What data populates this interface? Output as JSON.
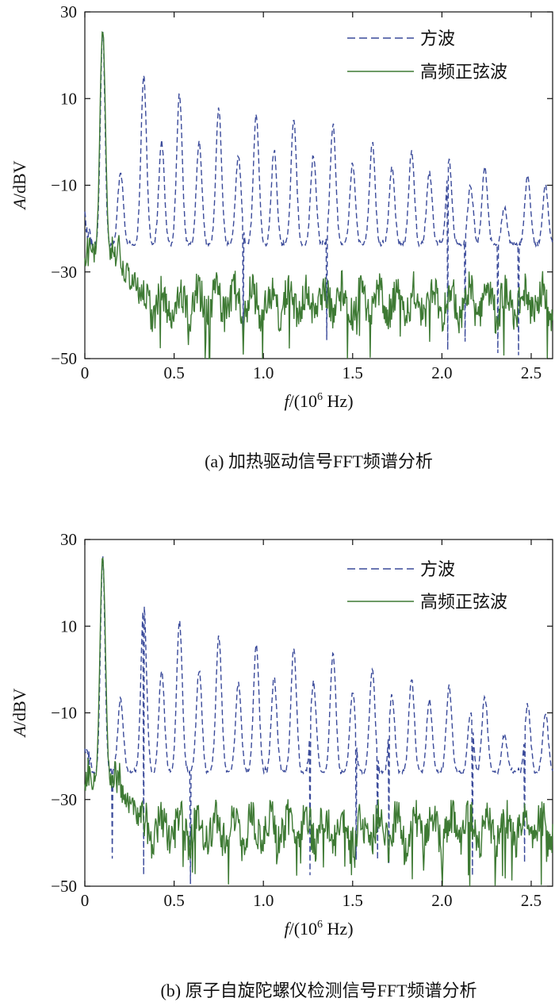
{
  "chart_data": [
    {
      "type": "line",
      "caption": "(a) 加热驱动信号FFT频谱分析",
      "xlabel_var": "f",
      "xlabel_unit_open": "/(10",
      "xlabel_exp": "6",
      "xlabel_unit_close": " Hz)",
      "ylabel_var": "A",
      "ylabel_unit": "/dBV",
      "xlim": [
        0,
        2.62
      ],
      "ylim": [
        -50,
        30
      ],
      "xticks": [
        0,
        0.5,
        1.0,
        1.5,
        2.0,
        2.5
      ],
      "xtick_labels": [
        "0",
        "0.5",
        "1.0",
        "1.5",
        "2.0",
        "2.5"
      ],
      "yticks": [
        30,
        10,
        -10,
        -30,
        -50
      ],
      "ytick_labels": [
        "30",
        "10",
        "−10",
        "−30",
        "−50"
      ],
      "legend_position": "top-right",
      "series": [
        {
          "name": "方波",
          "style": "dashed",
          "color": "#3a4a9a",
          "harmonics": [
            [
              0.1,
              26
            ],
            [
              0.2,
              -7
            ],
            [
              0.33,
              15
            ],
            [
              0.43,
              0
            ],
            [
              0.53,
              11
            ],
            [
              0.64,
              0
            ],
            [
              0.75,
              8
            ],
            [
              0.86,
              -3
            ],
            [
              0.96,
              6
            ],
            [
              1.06,
              -2
            ],
            [
              1.17,
              5
            ],
            [
              1.28,
              -3
            ],
            [
              1.39,
              4
            ],
            [
              1.5,
              -5
            ],
            [
              1.61,
              0
            ],
            [
              1.72,
              -6
            ],
            [
              1.83,
              -2
            ],
            [
              1.93,
              -7
            ],
            [
              2.04,
              -4
            ],
            [
              2.16,
              -10
            ],
            [
              2.24,
              -6
            ],
            [
              2.35,
              -15
            ],
            [
              2.48,
              -8
            ],
            [
              2.58,
              -10
            ]
          ],
          "floor": -24
        },
        {
          "name": "高频正弦波",
          "style": "solid",
          "color": "#3e7a34",
          "peak": [
            0.1,
            26
          ],
          "floor": -37
        }
      ]
    },
    {
      "type": "line",
      "caption": "(b) 原子自旋陀螺仪检测信号FFT频谱分析",
      "xlabel_var": "f",
      "xlabel_unit_open": "/(10",
      "xlabel_exp": "6",
      "xlabel_unit_close": " Hz)",
      "ylabel_var": "A",
      "ylabel_unit": "/dBV",
      "xlim": [
        0,
        2.62
      ],
      "ylim": [
        -50,
        30
      ],
      "xticks": [
        0,
        0.5,
        1.0,
        1.5,
        2.0,
        2.5
      ],
      "xtick_labels": [
        "0",
        "0.5",
        "1.0",
        "1.5",
        "2.0",
        "2.5"
      ],
      "yticks": [
        30,
        10,
        -10,
        -30,
        -50
      ],
      "ytick_labels": [
        "30",
        "10",
        "−10",
        "−30",
        "−50"
      ],
      "legend_position": "top-right",
      "series": [
        {
          "name": "方波",
          "style": "dashed",
          "color": "#3a4a9a",
          "harmonics": [
            [
              0.1,
              26
            ],
            [
              0.2,
              -7
            ],
            [
              0.33,
              15
            ],
            [
              0.43,
              0
            ],
            [
              0.53,
              11
            ],
            [
              0.64,
              0
            ],
            [
              0.75,
              8
            ],
            [
              0.86,
              -3
            ],
            [
              0.96,
              6
            ],
            [
              1.06,
              -2
            ],
            [
              1.17,
              5
            ],
            [
              1.28,
              -3
            ],
            [
              1.39,
              4
            ],
            [
              1.5,
              -5
            ],
            [
              1.61,
              0
            ],
            [
              1.72,
              -6
            ],
            [
              1.83,
              -2
            ],
            [
              1.93,
              -7
            ],
            [
              2.04,
              -4
            ],
            [
              2.16,
              -10
            ],
            [
              2.24,
              -6
            ],
            [
              2.35,
              -15
            ],
            [
              2.48,
              -8
            ],
            [
              2.58,
              -10
            ]
          ],
          "floor": -24
        },
        {
          "name": "高频正弦波",
          "style": "solid",
          "color": "#3e7a34",
          "peak": [
            0.1,
            26
          ],
          "floor": -37
        }
      ]
    }
  ]
}
